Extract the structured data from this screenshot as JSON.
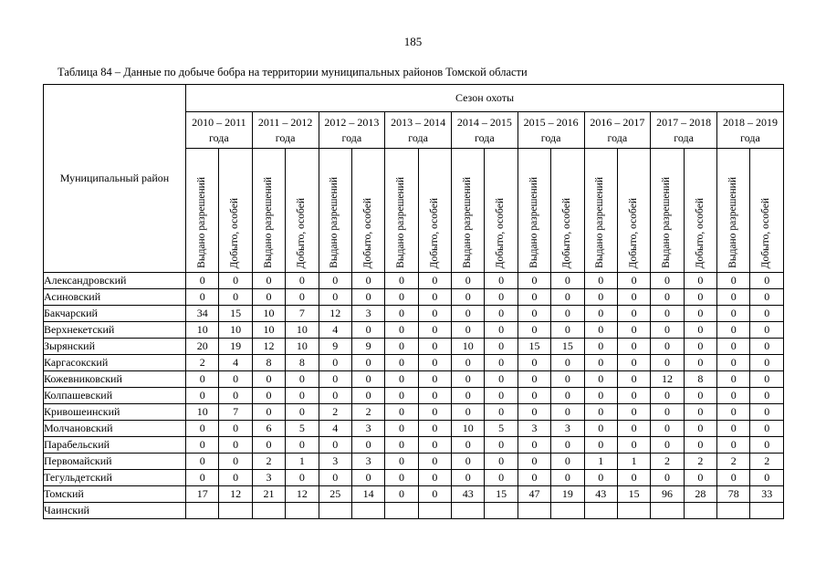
{
  "page": {
    "number": "185",
    "caption": "Таблица 84 – Данные по добыче бобра на территории муниципальных районов Томской области"
  },
  "table": {
    "district_header": "Муниципальный район",
    "season_header": "Сезон охоты",
    "year_word": "года",
    "seasons": [
      "2010 – 2011",
      "2011 – 2012",
      "2012 – 2013",
      "2013 – 2014",
      "2014 – 2015",
      "2015 – 2016",
      "2016 – 2017",
      "2017 – 2018",
      "2018 – 2019"
    ],
    "sub_columns": [
      "Выдано разрешений",
      "Добыто, особей"
    ],
    "rows": [
      {
        "district": "Александровский",
        "values": [
          0,
          0,
          0,
          0,
          0,
          0,
          0,
          0,
          0,
          0,
          0,
          0,
          0,
          0,
          0,
          0,
          0,
          0
        ]
      },
      {
        "district": "Асиновский",
        "values": [
          0,
          0,
          0,
          0,
          0,
          0,
          0,
          0,
          0,
          0,
          0,
          0,
          0,
          0,
          0,
          0,
          0,
          0
        ]
      },
      {
        "district": "Бакчарский",
        "values": [
          34,
          15,
          10,
          7,
          12,
          3,
          0,
          0,
          0,
          0,
          0,
          0,
          0,
          0,
          0,
          0,
          0,
          0
        ]
      },
      {
        "district": "Верхнекетский",
        "values": [
          10,
          10,
          10,
          10,
          4,
          0,
          0,
          0,
          0,
          0,
          0,
          0,
          0,
          0,
          0,
          0,
          0,
          0
        ]
      },
      {
        "district": "Зырянский",
        "values": [
          20,
          19,
          12,
          10,
          9,
          9,
          0,
          0,
          10,
          0,
          15,
          15,
          0,
          0,
          0,
          0,
          0,
          0
        ]
      },
      {
        "district": "Каргасокский",
        "values": [
          2,
          4,
          8,
          8,
          0,
          0,
          0,
          0,
          0,
          0,
          0,
          0,
          0,
          0,
          0,
          0,
          0,
          0
        ]
      },
      {
        "district": "Кожевниковский",
        "values": [
          0,
          0,
          0,
          0,
          0,
          0,
          0,
          0,
          0,
          0,
          0,
          0,
          0,
          0,
          12,
          8,
          0,
          0
        ]
      },
      {
        "district": "Колпашевский",
        "values": [
          0,
          0,
          0,
          0,
          0,
          0,
          0,
          0,
          0,
          0,
          0,
          0,
          0,
          0,
          0,
          0,
          0,
          0
        ]
      },
      {
        "district": "Кривошеинский",
        "values": [
          10,
          7,
          0,
          0,
          2,
          2,
          0,
          0,
          0,
          0,
          0,
          0,
          0,
          0,
          0,
          0,
          0,
          0
        ]
      },
      {
        "district": "Молчановский",
        "values": [
          0,
          0,
          6,
          5,
          4,
          3,
          0,
          0,
          10,
          5,
          3,
          3,
          0,
          0,
          0,
          0,
          0,
          0
        ]
      },
      {
        "district": "Парабельский",
        "values": [
          0,
          0,
          0,
          0,
          0,
          0,
          0,
          0,
          0,
          0,
          0,
          0,
          0,
          0,
          0,
          0,
          0,
          0
        ]
      },
      {
        "district": "Первомайский",
        "values": [
          0,
          0,
          2,
          1,
          3,
          3,
          0,
          0,
          0,
          0,
          0,
          0,
          1,
          1,
          2,
          2,
          2,
          2
        ]
      },
      {
        "district": "Тегульдетский",
        "values": [
          0,
          0,
          3,
          0,
          0,
          0,
          0,
          0,
          0,
          0,
          0,
          0,
          0,
          0,
          0,
          0,
          0,
          0
        ]
      },
      {
        "district": "Томский",
        "values": [
          17,
          12,
          21,
          12,
          25,
          14,
          0,
          0,
          43,
          15,
          47,
          19,
          43,
          15,
          96,
          28,
          78,
          33
        ]
      },
      {
        "district": "Чаинский",
        "values": [
          "",
          "",
          "",
          "",
          "",
          "",
          "",
          "",
          "",
          "",
          "",
          "",
          "",
          "",
          "",
          "",
          "",
          ""
        ]
      }
    ]
  }
}
